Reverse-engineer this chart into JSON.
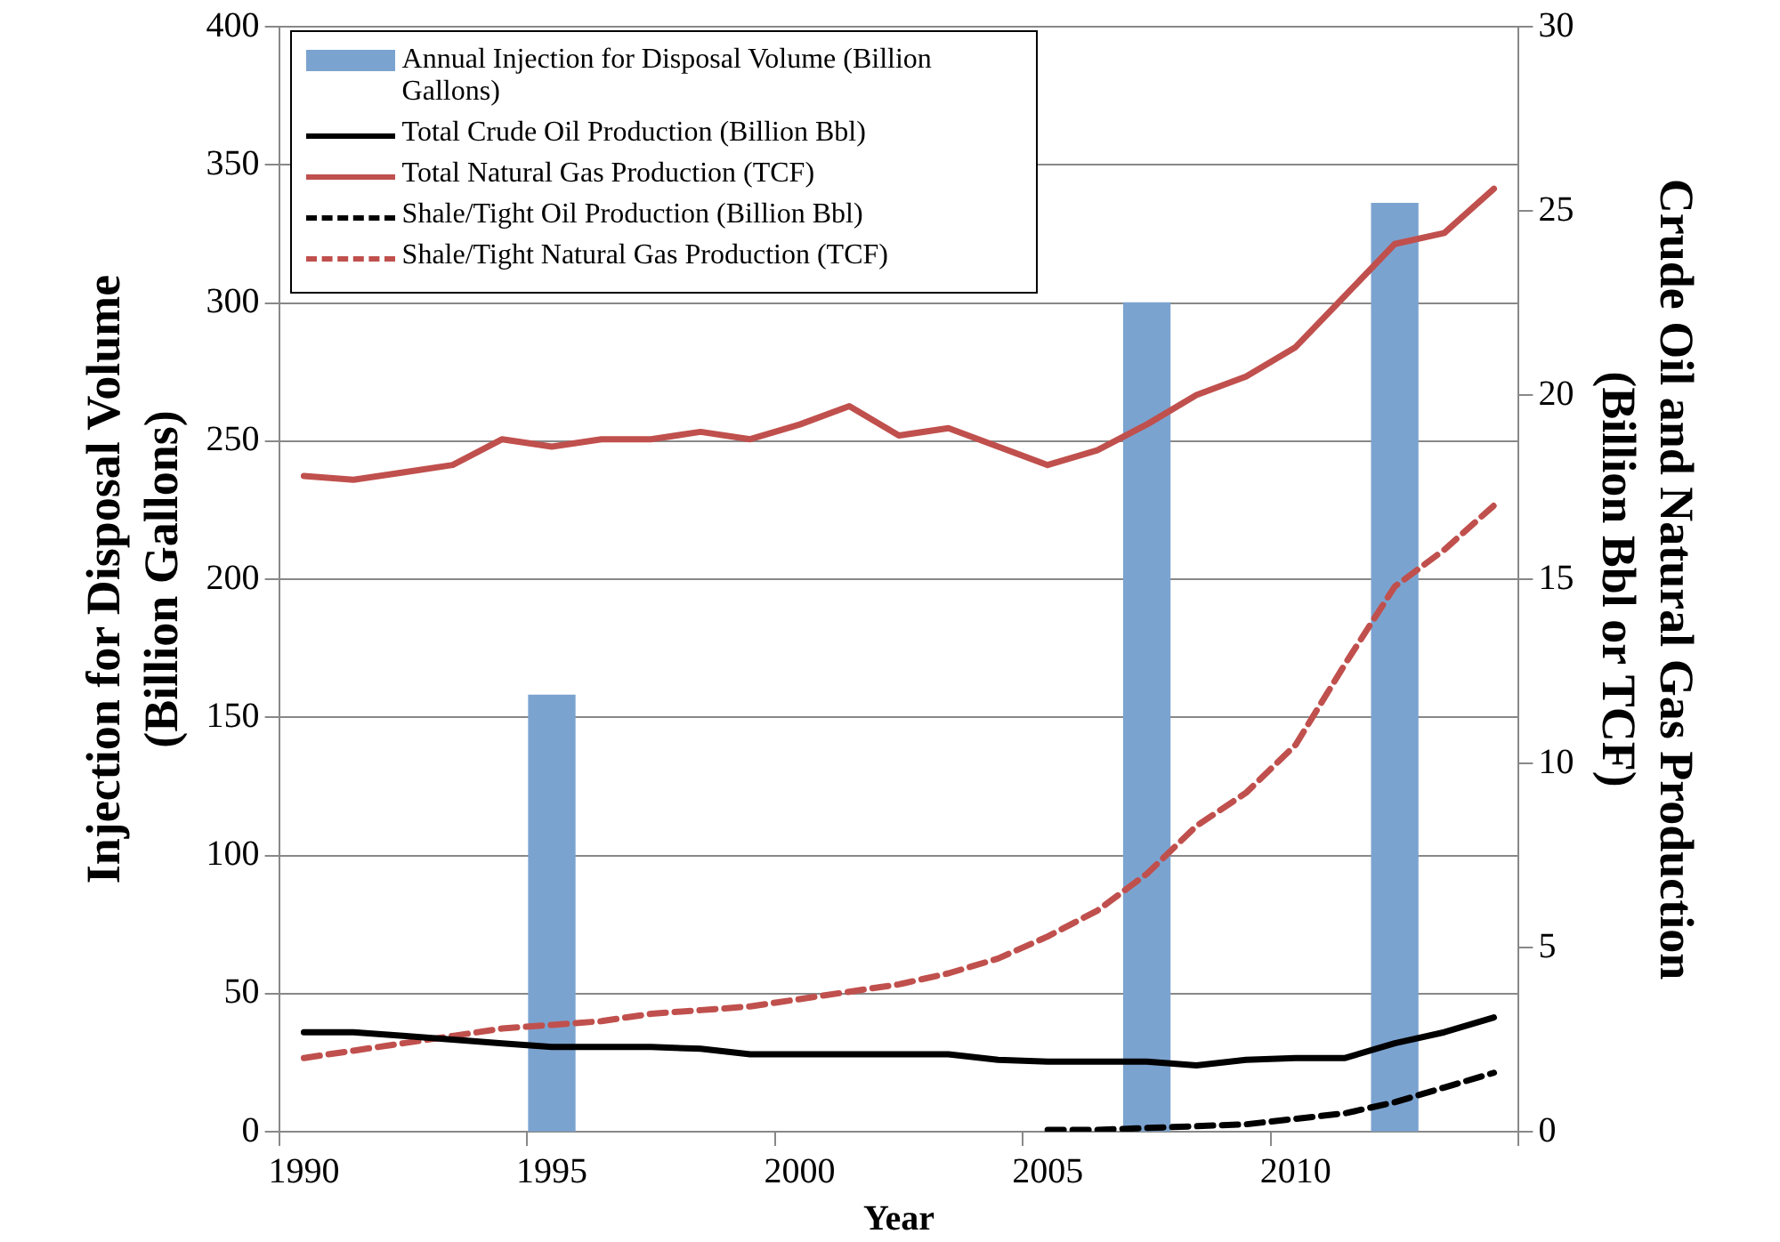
{
  "chart_data": {
    "type": "line",
    "xlabel": "Year",
    "ylabel": "Injection for Disposal Volume\n(Billion Gallons)",
    "y2label": "Crude Oil and Natural Gas Production\n(Billion Bbl or TCF)",
    "x": [
      1990,
      1991,
      1992,
      1993,
      1994,
      1995,
      1996,
      1997,
      1998,
      1999,
      2000,
      2001,
      2002,
      2003,
      2004,
      2005,
      2006,
      2007,
      2008,
      2009,
      2010,
      2011,
      2012,
      2013,
      2014
    ],
    "xlim": [
      1989.5,
      2014.5
    ],
    "xticks": [
      {
        "value": 1989.5,
        "label": null
      },
      1990,
      {
        "value": 1994.5,
        "label": null
      },
      1995,
      {
        "value": 1999.5,
        "label": null
      },
      2000,
      {
        "value": 2004.5,
        "label": null
      },
      2005,
      {
        "value": 2009.5,
        "label": null
      },
      2010,
      {
        "value": 2014.5,
        "label": null
      }
    ],
    "ylim": [
      0,
      400
    ],
    "yticks": [
      0,
      50,
      100,
      150,
      200,
      250,
      300,
      350,
      400
    ],
    "y2lim": [
      0,
      30
    ],
    "y2ticks": [
      0,
      5,
      10,
      15,
      20,
      25,
      30
    ],
    "grid": "y",
    "legend": "top left",
    "marker": "none",
    "series": [
      {
        "name": "Annual Injection for Disposal Volume (Billion Gallons)",
        "type": "bar",
        "color": "#7ba3d0",
        "x": [
          1995,
          2007,
          2012
        ],
        "values": [
          158,
          300,
          336
        ]
      },
      {
        "name": "Total Crude Oil Production (Billion Bbl)",
        "axis": "y2",
        "color": "#000000",
        "line_style": "solid",
        "values": [
          2.7,
          2.7,
          2.6,
          2.5,
          2.4,
          2.3,
          2.3,
          2.3,
          2.25,
          2.1,
          2.1,
          2.1,
          2.1,
          2.1,
          1.95,
          1.9,
          1.9,
          1.9,
          1.8,
          1.95,
          2.0,
          2.0,
          2.4,
          2.7,
          3.1
        ]
      },
      {
        "name": "Total Natural Gas Production (TCF)",
        "axis": "y2",
        "color": "#c0504d",
        "line_style": "solid",
        "values": [
          17.8,
          17.7,
          17.9,
          18.1,
          18.8,
          18.6,
          18.8,
          18.8,
          19.0,
          18.8,
          19.2,
          19.7,
          18.9,
          19.1,
          18.6,
          18.1,
          18.5,
          19.2,
          20.0,
          20.5,
          21.3,
          22.7,
          24.1,
          24.4,
          25.6
        ]
      },
      {
        "name": "Shale/Tight Oil Production (Billion Bbl)",
        "axis": "y2",
        "color": "#000000",
        "line_style": "dashed",
        "values": [
          null,
          null,
          null,
          null,
          null,
          null,
          null,
          null,
          null,
          null,
          null,
          null,
          null,
          null,
          null,
          0.05,
          0.05,
          0.1,
          0.15,
          0.2,
          0.35,
          0.5,
          0.8,
          1.2,
          1.6
        ]
      },
      {
        "name": "Shale/Tight Natural Gas Production (TCF)",
        "axis": "y2",
        "color": "#c0504d",
        "line_style": "dashed",
        "values": [
          2.0,
          2.2,
          2.4,
          2.6,
          2.8,
          2.9,
          3.0,
          3.2,
          3.3,
          3.4,
          3.6,
          3.8,
          4.0,
          4.3,
          4.7,
          5.3,
          6.0,
          7.0,
          8.3,
          9.2,
          10.5,
          12.7,
          14.8,
          15.8,
          17.0
        ]
      }
    ]
  }
}
